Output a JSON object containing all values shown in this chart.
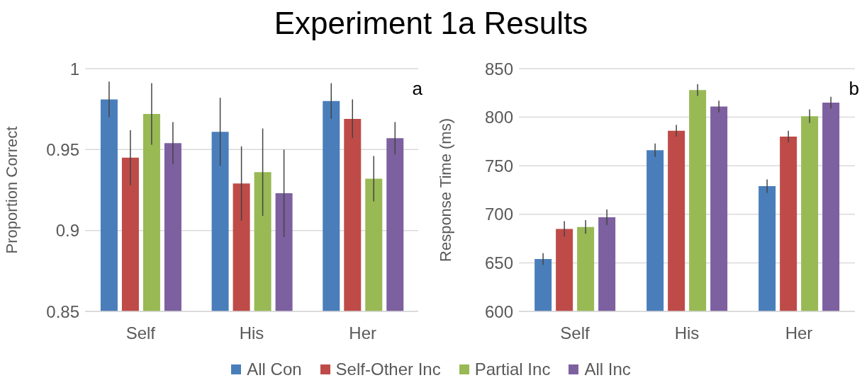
{
  "chart_data": [
    {
      "type": "bar",
      "title": "Experiment 1a Results",
      "ylabel": "Proportion Correct",
      "categories": [
        "Self",
        "His",
        "Her"
      ],
      "ylim": [
        0.85,
        1
      ],
      "yticks": [
        {
          "value": 0.85,
          "label": "0.85"
        },
        {
          "value": 0.9,
          "label": "0.9"
        },
        {
          "value": 0.95,
          "label": "0.95"
        },
        {
          "value": 1,
          "label": "1"
        }
      ],
      "grid": "y",
      "legend": "bottom",
      "annotations": [
        "a"
      ],
      "series": [
        {
          "name": "All Con",
          "color": "#4a7ebb",
          "values": [
            0.981,
            0.961,
            0.98
          ],
          "errors": [
            0.011,
            0.021,
            0.011
          ]
        },
        {
          "name": "Self-Other Inc",
          "color": "#be4b48",
          "values": [
            0.945,
            0.929,
            0.969
          ],
          "errors": [
            0.017,
            0.023,
            0.012
          ]
        },
        {
          "name": "Partial Inc",
          "color": "#98b954",
          "values": [
            0.972,
            0.936,
            0.932
          ],
          "errors": [
            0.019,
            0.027,
            0.014
          ]
        },
        {
          "name": "All Inc",
          "color": "#7d60a0",
          "values": [
            0.954,
            0.923,
            0.957
          ],
          "errors": [
            0.013,
            0.027,
            0.01
          ]
        }
      ]
    },
    {
      "type": "bar",
      "ylabel": "Response Time (ms)",
      "categories": [
        "Self",
        "His",
        "Her"
      ],
      "ylim": [
        600,
        850
      ],
      "yticks": [
        600,
        650,
        700,
        750,
        800,
        850
      ],
      "grid": "y",
      "annotations": [
        "b"
      ],
      "series": [
        {
          "color": "#4a7ebb",
          "values": [
            654,
            766,
            729
          ],
          "errors": [
            6,
            7,
            7
          ]
        },
        {
          "color": "#be4b48",
          "values": [
            685,
            786,
            780
          ],
          "errors": [
            8,
            6,
            6
          ]
        },
        {
          "color": "#98b954",
          "values": [
            687,
            828,
            801
          ],
          "errors": [
            7,
            6,
            7
          ]
        },
        {
          "color": "#7d60a0",
          "values": [
            697,
            811,
            815
          ],
          "errors": [
            8,
            6,
            6
          ]
        }
      ]
    }
  ]
}
